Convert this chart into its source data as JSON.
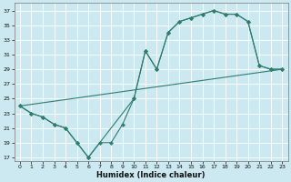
{
  "title": "",
  "xlabel": "Humidex (Indice chaleur)",
  "bg_color": "#cce8f0",
  "grid_color": "#ffffff",
  "line_color": "#2e7d6e",
  "xlim": [
    -0.5,
    23.5
  ],
  "ylim": [
    16.5,
    38
  ],
  "yticks": [
    17,
    19,
    21,
    23,
    25,
    27,
    29,
    31,
    33,
    35,
    37
  ],
  "xticks": [
    0,
    1,
    2,
    3,
    4,
    5,
    6,
    7,
    8,
    9,
    10,
    11,
    12,
    13,
    14,
    15,
    16,
    17,
    18,
    19,
    20,
    21,
    22,
    23
  ],
  "line1_x": [
    0,
    1,
    2,
    3,
    4,
    5,
    6,
    7,
    8,
    9,
    10,
    11,
    12,
    13,
    14,
    15,
    16,
    17,
    18,
    19,
    20,
    21,
    22,
    23
  ],
  "line1_y": [
    24.0,
    23.0,
    22.5,
    21.5,
    21.0,
    19.0,
    17.0,
    19.0,
    19.0,
    21.5,
    25.0,
    31.5,
    29.0,
    34.0,
    35.5,
    36.0,
    36.5,
    37.0,
    36.5,
    36.5,
    35.5,
    29.5,
    29.0,
    29.0
  ],
  "line2_x": [
    0,
    1,
    2,
    3,
    4,
    5,
    6,
    10,
    11,
    12,
    13,
    14,
    15,
    16,
    17,
    18,
    19,
    20,
    21,
    22,
    23
  ],
  "line2_y": [
    24.0,
    23.0,
    22.5,
    21.5,
    21.0,
    19.0,
    17.0,
    25.0,
    31.5,
    29.0,
    34.0,
    35.5,
    36.0,
    36.5,
    37.0,
    36.5,
    36.5,
    35.5,
    29.5,
    29.0,
    29.0
  ],
  "line3_x": [
    0,
    23
  ],
  "line3_y": [
    24.0,
    29.0
  ]
}
